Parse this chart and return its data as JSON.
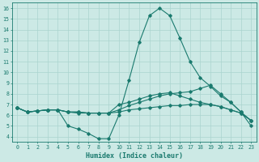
{
  "xlabel": "Humidex (Indice chaleur)",
  "bg_color": "#cce9e5",
  "grid_color": "#aad4cf",
  "line_color": "#1a7a6e",
  "xlim": [
    -0.5,
    23.5
  ],
  "ylim": [
    3.5,
    16.5
  ],
  "xticks": [
    0,
    1,
    2,
    3,
    4,
    5,
    6,
    7,
    8,
    9,
    10,
    11,
    12,
    13,
    14,
    15,
    16,
    17,
    18,
    19,
    20,
    21,
    22,
    23
  ],
  "yticks": [
    4,
    5,
    6,
    7,
    8,
    9,
    10,
    11,
    12,
    13,
    14,
    15,
    16
  ],
  "series": [
    [
      6.7,
      6.3,
      6.4,
      6.5,
      6.5,
      5.0,
      4.7,
      4.3,
      3.8,
      3.8,
      6.0,
      9.3,
      12.8,
      15.3,
      16.0,
      15.3,
      13.2,
      11.0,
      9.5,
      8.7,
      7.8,
      7.2,
      6.3,
      5.0
    ],
    [
      6.7,
      6.3,
      6.4,
      6.5,
      6.5,
      6.3,
      6.3,
      6.2,
      6.2,
      6.2,
      6.5,
      6.9,
      7.2,
      7.5,
      7.8,
      8.0,
      8.1,
      8.2,
      8.5,
      8.8,
      8.0,
      7.2,
      6.3,
      5.5
    ],
    [
      6.7,
      6.3,
      6.4,
      6.5,
      6.5,
      6.3,
      6.3,
      6.2,
      6.2,
      6.2,
      7.0,
      7.2,
      7.5,
      7.8,
      8.0,
      8.1,
      7.8,
      7.5,
      7.2,
      7.0,
      6.8,
      6.5,
      6.2,
      5.5
    ],
    [
      6.7,
      6.3,
      6.4,
      6.5,
      6.5,
      6.3,
      6.2,
      6.2,
      6.2,
      6.2,
      6.3,
      6.5,
      6.6,
      6.7,
      6.8,
      6.9,
      6.9,
      7.0,
      7.0,
      7.0,
      6.8,
      6.5,
      6.2,
      5.5
    ]
  ],
  "xlabel_fontsize": 6.0,
  "tick_fontsize": 4.8,
  "linewidth": 0.8,
  "markersize": 1.8
}
